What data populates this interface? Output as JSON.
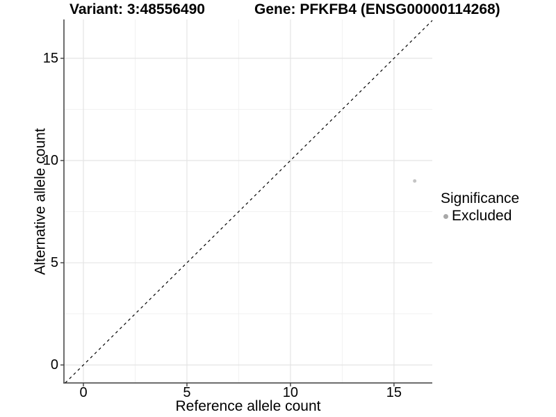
{
  "header": {
    "variant_title": "Variant: 3:48556490",
    "gene_title": "Gene: PFKFB4 (ENSG00000114268)"
  },
  "chart_data": {
    "type": "scatter",
    "title_left": "Variant: 3:48556490",
    "title_right": "Gene: PFKFB4 (ENSG00000114268)",
    "xlabel": "Reference allele count",
    "ylabel": "Alternative allele count",
    "xlim": [
      -0.94,
      16.85
    ],
    "ylim": [
      -0.88,
      16.9
    ],
    "x_ticks": [
      0,
      5,
      10,
      15
    ],
    "y_ticks": [
      0,
      5,
      10,
      15
    ],
    "x_minor_ticks": [
      2.5,
      7.5,
      12.5
    ],
    "y_minor_ticks": [
      2.5,
      7.5,
      12.5
    ],
    "grid": true,
    "points": [
      {
        "x": 16,
        "y": 9,
        "series": "Excluded"
      }
    ],
    "point_color": "#c4c4c4",
    "point_radius": 2.5,
    "reference_line": {
      "type": "identity",
      "slope": 1,
      "intercept": 0,
      "style": "dashed",
      "color": "#000000"
    },
    "legend": {
      "title": "Significance",
      "position": "right",
      "entries": [
        {
          "label": "Excluded",
          "color": "#a8a8a8"
        }
      ]
    }
  },
  "colors": {
    "background": "#ffffff",
    "axis_line": "#3d3d3d",
    "major_grid": "#e4e4e4",
    "minor_grid": "#f1f1f1",
    "text": "#000000"
  }
}
